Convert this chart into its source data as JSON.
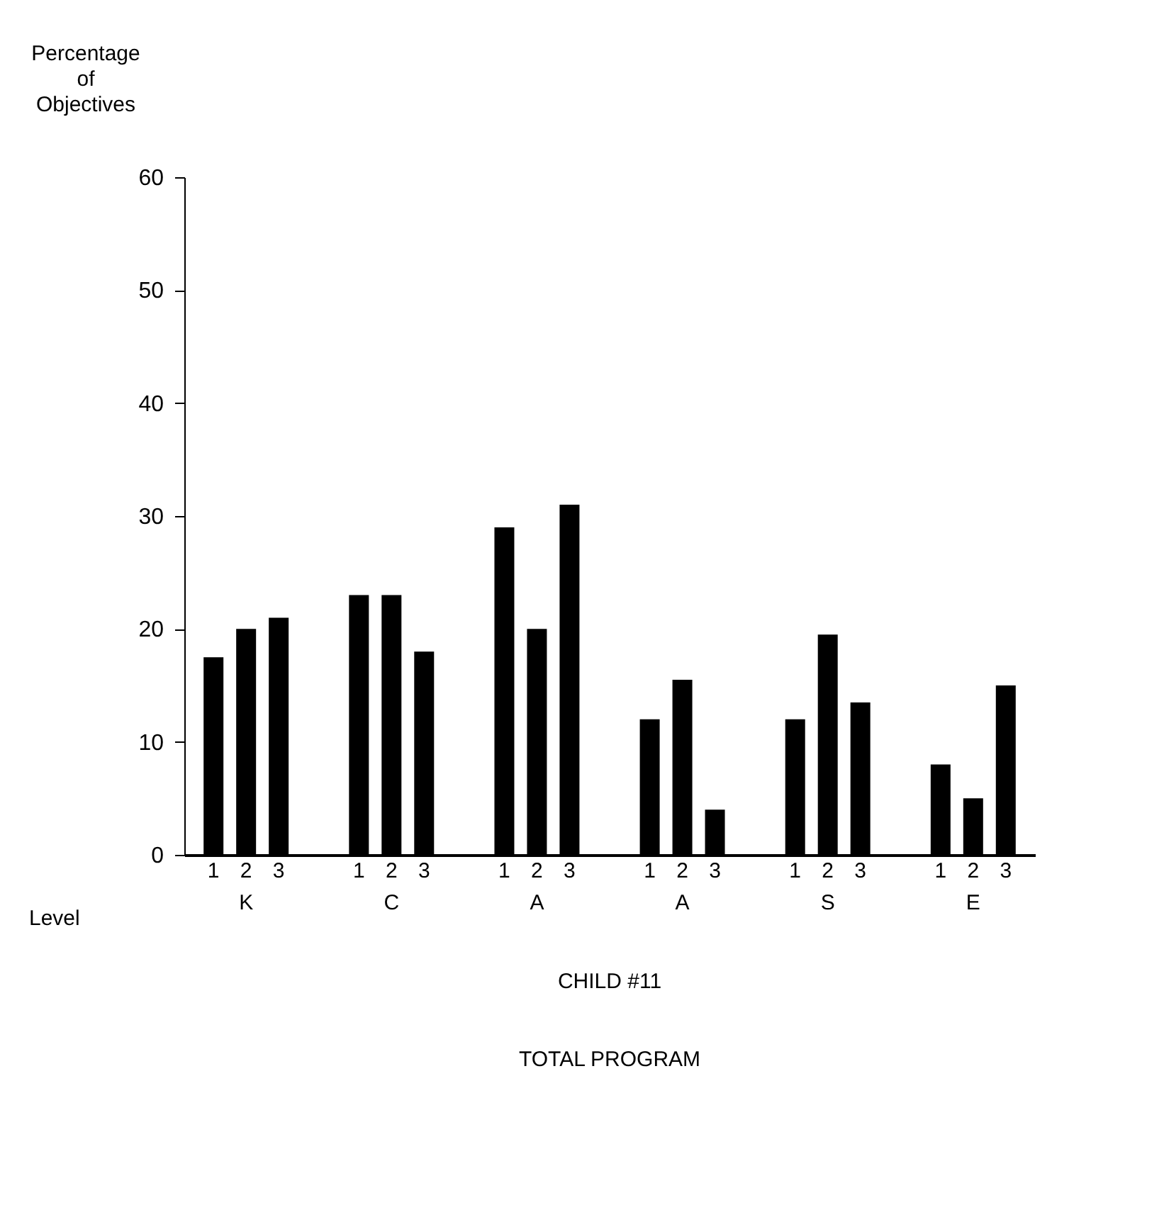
{
  "chart_data": {
    "type": "bar",
    "title": "CHILD #11",
    "subtitle": "TOTAL PROGRAM",
    "xlabel": "Level",
    "ylabel": "Percentage of Objectives",
    "categories": [
      "K",
      "C",
      "A",
      "A",
      "S",
      "E"
    ],
    "series": [
      {
        "name": "1",
        "color": "#000000",
        "values": [
          17.5,
          23,
          29,
          12,
          12,
          8
        ]
      },
      {
        "name": "2",
        "color": "#000000",
        "values": [
          20,
          23,
          20,
          15.5,
          19.5,
          5
        ]
      },
      {
        "name": "3",
        "color": "#000000",
        "values": [
          21,
          18,
          31,
          4,
          13.5,
          15
        ]
      }
    ],
    "ylim": [
      0,
      60
    ],
    "yticks": [
      0,
      10,
      20,
      30,
      40,
      50,
      60
    ],
    "grid": false,
    "legend": false
  }
}
